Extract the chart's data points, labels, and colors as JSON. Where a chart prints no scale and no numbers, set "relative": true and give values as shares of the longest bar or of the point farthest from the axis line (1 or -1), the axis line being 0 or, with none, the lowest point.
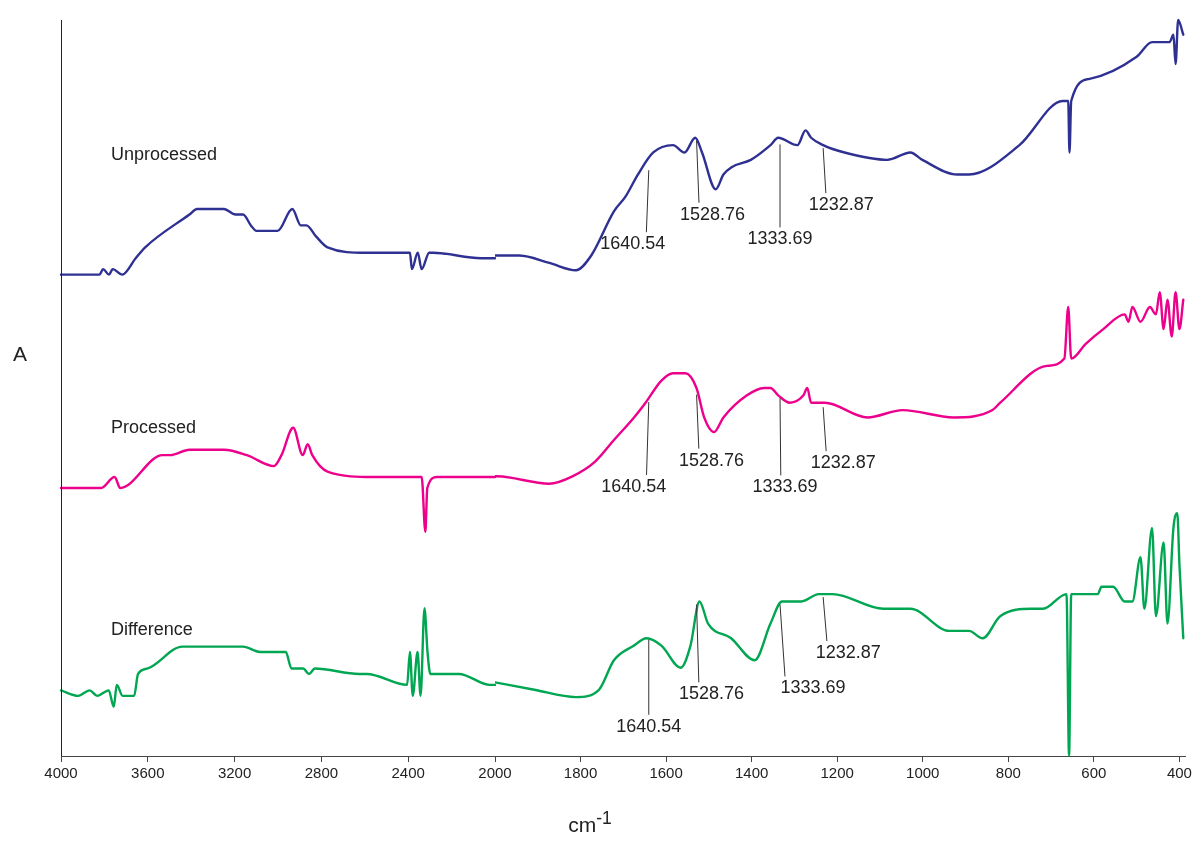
{
  "chart_data": [
    {
      "type": "line",
      "ylabel": "A",
      "relative": true,
      "legend": false,
      "marker": "none",
      "line_style": "solid",
      "xlim": [
        4000,
        2000
      ],
      "xticks": [
        4000,
        3600,
        3200,
        2800,
        2400,
        2000
      ],
      "series": [
        {
          "name": "Unprocessed",
          "color": "#2e3192",
          "x": [
            4000,
            3885,
            3823,
            3806,
            3779,
            3762,
            3718,
            3656,
            3612,
            3408,
            3373,
            3249,
            3196,
            3161,
            3125,
            3099,
            3045,
            3002,
            2934,
            2895,
            2869,
            2825,
            2772,
            2595,
            2392,
            2383,
            2356,
            2338,
            2303,
            2286,
            2064,
            2000
          ],
          "values": [
            0.88,
            0.88,
            0.88,
            0.89,
            0.88,
            0.89,
            0.88,
            0.91,
            0.93,
            0.99,
            1.0,
            1.0,
            0.99,
            0.99,
            0.97,
            0.96,
            0.96,
            0.96,
            1.0,
            0.97,
            0.97,
            0.95,
            0.93,
            0.92,
            0.92,
            0.89,
            0.92,
            0.89,
            0.92,
            0.92,
            0.91,
            0.91
          ]
        },
        {
          "name": "Processed",
          "color": "#ec008c",
          "x": [
            4000,
            3921,
            3868,
            3815,
            3753,
            3727,
            3532,
            3496,
            3408,
            3284,
            3249,
            3143,
            3019,
            2984,
            2930,
            2886,
            2863,
            2842,
            2772,
            2559,
            2347,
            2338,
            2321,
            2312,
            2267,
            2011,
            2000
          ],
          "values": [
            0.49,
            0.49,
            0.49,
            0.49,
            0.51,
            0.49,
            0.55,
            0.55,
            0.56,
            0.56,
            0.56,
            0.55,
            0.53,
            0.55,
            0.6,
            0.55,
            0.57,
            0.55,
            0.52,
            0.51,
            0.51,
            0.51,
            0.41,
            0.49,
            0.51,
            0.51,
            0.51
          ]
        },
        {
          "name": "Difference",
          "color": "#00a651",
          "x": [
            4000,
            3921,
            3868,
            3833,
            3780,
            3757,
            3743,
            3716,
            3690,
            3663,
            3645,
            3600,
            3440,
            3333,
            3249,
            3161,
            3081,
            3002,
            2964,
            2938,
            2884,
            2857,
            2830,
            2626,
            2591,
            2405,
            2392,
            2379,
            2357,
            2343,
            2325,
            2311,
            2298,
            2254,
            2166,
            2024,
            2000
          ],
          "values": [
            0.12,
            0.11,
            0.12,
            0.11,
            0.12,
            0.09,
            0.13,
            0.11,
            0.11,
            0.11,
            0.15,
            0.16,
            0.2,
            0.2,
            0.2,
            0.2,
            0.19,
            0.19,
            0.19,
            0.16,
            0.16,
            0.15,
            0.16,
            0.15,
            0.15,
            0.13,
            0.19,
            0.11,
            0.19,
            0.11,
            0.27,
            0.19,
            0.15,
            0.15,
            0.15,
            0.13,
            0.13
          ]
        }
      ]
    },
    {
      "type": "line",
      "xlabel": "cm$^{-1}$",
      "relative": true,
      "legend": false,
      "marker": "none",
      "line_style": "solid",
      "xlim": [
        2000,
        386
      ],
      "xticks": [
        1800,
        1600,
        1400,
        1200,
        1000,
        800,
        600,
        400
      ],
      "series": [
        {
          "color": "#2e3192",
          "x": [
            2000,
            1944,
            1873,
            1811,
            1775,
            1722,
            1695,
            1666,
            1630,
            1584,
            1557,
            1532,
            1516,
            1484,
            1466,
            1447,
            1402,
            1356,
            1338,
            1293,
            1274,
            1261,
            1233,
            1183,
            1083,
            1029,
            1001,
            919,
            892,
            774,
            673,
            660,
            657,
            653,
            610,
            500,
            464,
            441,
            423,
            414,
            409,
            403,
            391
          ],
          "values": [
            0.68,
            0.68,
            0.67,
            0.66,
            0.68,
            0.74,
            0.76,
            0.79,
            0.82,
            0.83,
            0.82,
            0.84,
            0.82,
            0.77,
            0.79,
            0.8,
            0.81,
            0.83,
            0.84,
            0.83,
            0.85,
            0.84,
            0.83,
            0.82,
            0.81,
            0.82,
            0.81,
            0.79,
            0.79,
            0.83,
            0.89,
            0.89,
            0.82,
            0.89,
            0.92,
            0.95,
            0.97,
            0.97,
            0.97,
            0.98,
            0.94,
            1.0,
            0.98
          ]
        },
        {
          "color": "#ec008c",
          "x": [
            2000,
            1997,
            1873,
            1819,
            1766,
            1721,
            1675,
            1648,
            1611,
            1584,
            1555,
            1529,
            1511,
            1488,
            1466,
            1411,
            1370,
            1356,
            1338,
            1311,
            1279,
            1270,
            1261,
            1229,
            1129,
            1047,
            928,
            837,
            819,
            710,
            669,
            660,
            653,
            619,
            578,
            528,
            519,
            510,
            491,
            469,
            455,
            446,
            437,
            428,
            418,
            409,
            400,
            391
          ],
          "values": [
            0.38,
            0.38,
            0.37,
            0.38,
            0.4,
            0.43,
            0.46,
            0.48,
            0.51,
            0.52,
            0.52,
            0.5,
            0.46,
            0.44,
            0.46,
            0.49,
            0.5,
            0.5,
            0.49,
            0.48,
            0.49,
            0.5,
            0.48,
            0.48,
            0.46,
            0.47,
            0.46,
            0.47,
            0.48,
            0.53,
            0.54,
            0.61,
            0.54,
            0.56,
            0.58,
            0.6,
            0.59,
            0.61,
            0.59,
            0.61,
            0.6,
            0.63,
            0.58,
            0.62,
            0.57,
            0.63,
            0.58,
            0.62
          ]
        },
        {
          "color": "#00a651",
          "x": [
            2000,
            1908,
            1811,
            1757,
            1722,
            1675,
            1646,
            1611,
            1566,
            1543,
            1522,
            1502,
            1448,
            1393,
            1356,
            1329,
            1284,
            1243,
            1211,
            1092,
            1029,
            938,
            892,
            860,
            819,
            746,
            719,
            664,
            658,
            653,
            619,
            591,
            582,
            555,
            528,
            510,
            491,
            482,
            464,
            455,
            437,
            428,
            414,
            405,
            400,
            391
          ],
          "values": [
            0.1,
            0.09,
            0.08,
            0.09,
            0.13,
            0.15,
            0.16,
            0.15,
            0.12,
            0.15,
            0.21,
            0.18,
            0.16,
            0.13,
            0.18,
            0.21,
            0.21,
            0.22,
            0.22,
            0.2,
            0.2,
            0.17,
            0.17,
            0.16,
            0.19,
            0.2,
            0.2,
            0.22,
            0.0,
            0.22,
            0.22,
            0.22,
            0.23,
            0.23,
            0.21,
            0.21,
            0.27,
            0.2,
            0.31,
            0.19,
            0.29,
            0.18,
            0.31,
            0.33,
            0.26,
            0.16
          ]
        }
      ],
      "annotations": [
        {
          "text": "1640.54",
          "x": 1640.54,
          "y": 0.8
        },
        {
          "text": "1528.76",
          "x": 1528.76,
          "y": 0.84
        },
        {
          "text": "1333.69",
          "x": 1333.69,
          "y": 0.835
        },
        {
          "text": "1232.87",
          "x": 1232.87,
          "y": 0.83
        },
        {
          "text": "1640.54",
          "x": 1640.54,
          "y": 0.485
        },
        {
          "text": "1528.76",
          "x": 1528.76,
          "y": 0.495
        },
        {
          "text": "1333.69",
          "x": 1333.69,
          "y": 0.49
        },
        {
          "text": "1232.87",
          "x": 1232.87,
          "y": 0.478
        },
        {
          "text": "1640.54",
          "x": 1640.54,
          "y": 0.162
        },
        {
          "text": "1528.76",
          "x": 1528.76,
          "y": 0.21
        },
        {
          "text": "1333.69",
          "x": 1333.69,
          "y": 0.21
        },
        {
          "text": "1232.87",
          "x": 1232.87,
          "y": 0.22
        }
      ]
    }
  ]
}
